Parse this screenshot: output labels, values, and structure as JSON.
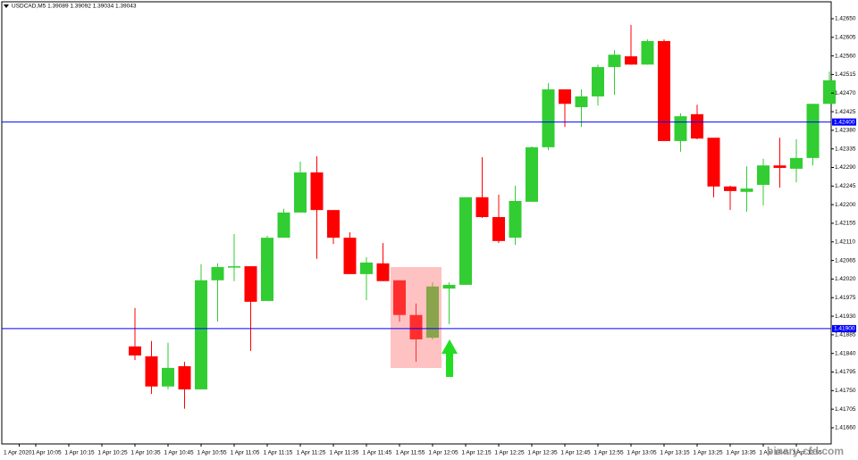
{
  "chart_data": {
    "type": "candlestick",
    "title": "USDCAD,M5  1.39089 1.39092 1.39034 1.39043",
    "watermark": "binary-cfd.com",
    "categories": [
      "1 Apr 2020",
      "1 Apr 10:05",
      null,
      "1 Apr 10:15",
      null,
      "1 Apr 10:25",
      null,
      "1 Apr 10:35",
      null,
      "1 Apr 10:45",
      null,
      "1 Apr 10:55",
      null,
      "1 Apr 11:05",
      null,
      "1 Apr 11:15",
      null,
      "1 Apr 11:25",
      null,
      "1 Apr 11:35",
      null,
      "1 Apr 11:45",
      null,
      "1 Apr 11:55",
      null,
      "1 Apr 12:05",
      null,
      "1 Apr 12:15",
      null,
      "1 Apr 12:25",
      null,
      "1 Apr 12:35",
      null,
      "1 Apr 12:45",
      null,
      "1 Apr 12:55",
      null,
      "1 Apr 13:05",
      null,
      "1 Apr 13:15",
      null,
      "1 Apr 13:25",
      null,
      "1 Apr 13:35",
      null,
      "1 Apr 13:45",
      null,
      "1 Apr 13:55",
      null,
      null
    ],
    "open": [
      null,
      null,
      null,
      null,
      null,
      null,
      null,
      1.41857,
      1.41833,
      1.4176,
      1.41809,
      1.41753,
      1.42017,
      1.42049,
      1.42051,
      1.41967,
      1.4212,
      1.42181,
      1.42278,
      1.42187,
      1.4212,
      1.42032,
      1.42058,
      1.42017,
      1.41933,
      1.41878,
      1.41997,
      1.42006,
      1.42218,
      1.4217,
      1.4212,
      1.42207,
      1.42339,
      1.42479,
      1.42436,
      1.42462,
      1.42533,
      1.42559,
      1.42539,
      1.42596,
      1.42354,
      1.42419,
      1.42362,
      1.42244,
      1.42231,
      1.42248,
      1.42295,
      1.42287,
      1.42313,
      1.42444
    ],
    "high": [
      null,
      null,
      null,
      null,
      null,
      null,
      null,
      1.4195,
      1.4187,
      1.41866,
      1.4182,
      1.42056,
      1.42058,
      1.42129,
      1.42051,
      1.42125,
      1.4219,
      1.42304,
      1.42317,
      1.42187,
      1.42133,
      1.42073,
      1.42107,
      1.42017,
      1.41961,
      1.42012,
      1.42012,
      1.42218,
      1.42315,
      1.42224,
      1.42246,
      1.42341,
      1.42494,
      1.42479,
      1.42479,
      1.42539,
      1.42574,
      1.42635,
      1.426,
      1.426,
      1.42421,
      1.42442,
      1.42362,
      1.42246,
      1.42293,
      1.42311,
      1.42362,
      1.42358,
      1.42444,
      1.42522
    ],
    "low": [
      null,
      null,
      null,
      null,
      null,
      null,
      null,
      1.41824,
      1.41742,
      1.41753,
      1.41706,
      1.41753,
      1.41917,
      1.42015,
      1.41846,
      1.41967,
      1.4212,
      1.42181,
      1.42069,
      1.42105,
      1.42032,
      1.41969,
      1.42015,
      1.41917,
      1.4182,
      1.41874,
      1.41911,
      1.42006,
      1.42168,
      1.42107,
      1.42103,
      1.42207,
      1.42332,
      1.42388,
      1.42388,
      1.4244,
      1.42466,
      1.42539,
      1.42539,
      1.42354,
      1.42328,
      1.42358,
      1.42218,
      1.42187,
      1.42183,
      1.42198,
      1.42241,
      1.42254,
      1.42295,
      1.42444
    ],
    "close": [
      null,
      null,
      null,
      null,
      null,
      null,
      null,
      1.41835,
      1.4176,
      1.41805,
      1.41753,
      1.42017,
      1.42049,
      1.42051,
      1.41965,
      1.4212,
      1.42181,
      1.42278,
      1.42187,
      1.4212,
      1.42032,
      1.4206,
      1.42015,
      1.41933,
      1.41874,
      1.42002,
      1.42006,
      1.42218,
      1.4217,
      1.42112,
      1.42209,
      1.42339,
      1.42479,
      1.42444,
      1.42462,
      1.42533,
      1.42563,
      1.42539,
      1.42596,
      1.42354,
      1.42414,
      1.4236,
      1.42244,
      1.42233,
      1.42239,
      1.42295,
      1.42289,
      1.42313,
      1.42444,
      1.42501
    ],
    "up_color": "#32cd32",
    "down_color": "#ff0000",
    "ylim": [
      1.41621,
      1.42691
    ],
    "yticks": [
      {
        "value": 1.4166,
        "label": "1.41660"
      },
      {
        "value": 1.41705,
        "label": "1.41705"
      },
      {
        "value": 1.4175,
        "label": "1.41750"
      },
      {
        "value": 1.41795,
        "label": "1.41795"
      },
      {
        "value": 1.4184,
        "label": "1.41840"
      },
      {
        "value": 1.41885,
        "label": "1.41885"
      },
      {
        "value": 1.4193,
        "label": "1.41930"
      },
      {
        "value": 1.41975,
        "label": "1.41975"
      },
      {
        "value": 1.4202,
        "label": "1.42020"
      },
      {
        "value": 1.42065,
        "label": "1.42065"
      },
      {
        "value": 1.4211,
        "label": "1.42110"
      },
      {
        "value": 1.42155,
        "label": "1.42155"
      },
      {
        "value": 1.422,
        "label": "1.42200"
      },
      {
        "value": 1.42245,
        "label": "1.42245"
      },
      {
        "value": 1.4229,
        "label": "1.42290"
      },
      {
        "value": 1.42335,
        "label": "1.42335"
      },
      {
        "value": 1.4238,
        "label": "1.42380"
      },
      {
        "value": 1.42425,
        "label": "1.42425"
      },
      {
        "value": 1.4247,
        "label": "1.42470"
      },
      {
        "value": 1.42515,
        "label": "1.42515"
      },
      {
        "value": 1.4256,
        "label": "1.42560"
      },
      {
        "value": 1.42605,
        "label": "1.42605"
      },
      {
        "value": 1.4265,
        "label": "1.42650"
      }
    ],
    "levels": [
      {
        "value": 1.424,
        "label": "1.42400"
      },
      {
        "value": 1.419,
        "label": "1.41900"
      }
    ],
    "level_color": "#0000ff"
  }
}
